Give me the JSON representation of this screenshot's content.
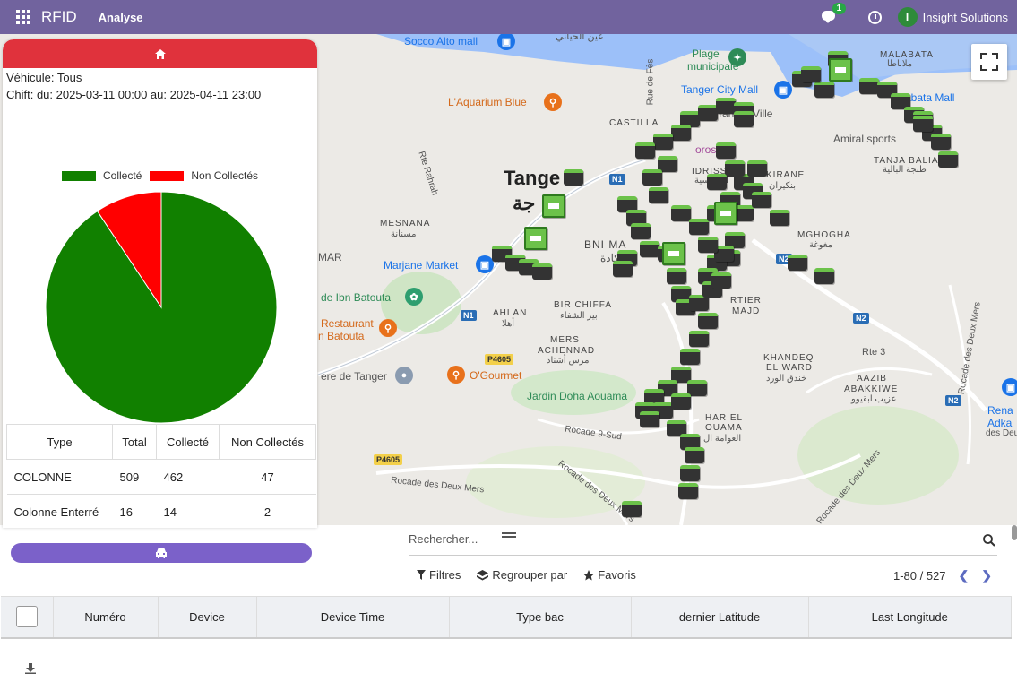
{
  "topbar": {
    "brand": "RFID",
    "menu": "Analyse",
    "chat_badge": "1",
    "user_initial": "I",
    "user_name": "Insight Solutions",
    "bg_color": "#71639e"
  },
  "map_labels": {
    "socco": "Socco Alto mall",
    "socco_ar": "عين الحياني",
    "plage": "Plage",
    "plage2": "municipale",
    "tanger_city_mall": "Tanger City Mall",
    "aquarium": "L'Aquarium Blue",
    "castilla": "CASTILLA",
    "tanger_ville": "Tanger Ville",
    "rue_fes": "Rue de Fès",
    "rte_rahrah": "Rte Rahrah",
    "tanger_big": "Tange",
    "tanger_ar": "جة",
    "mesnana": "MESNANA",
    "mesnana_ar": "مسنانة",
    "idrissia": "IDRISSIA",
    "idrissia_ar": "الإدريسية",
    "kirane": "KIRANE",
    "kirane_ar": "بنكيران",
    "mghogha": "MGHOGHA",
    "mghogha_ar": "مغوغة",
    "bni_makada": "BNI MA",
    "bni_makada_ar": "مكادة",
    "marjane": "Marjane Market",
    "ibn_batouta": "de Ibn Batouta",
    "restaurant": "Restaurant",
    "restaurant2": "n Batouta",
    "ahlan": "AHLAN",
    "ahlan_ar": "أهلا",
    "bir_chiffa": "BIR CHIFFA",
    "bir_chiffa_ar": "بير الشفاء",
    "mers": "MERS",
    "achennad": "ACHENNAD",
    "mers_ar": "مرس أشناد",
    "ogourmet": "O'Gourmet",
    "ere_tanger": "ere de Tanger",
    "jardin_doha": "Jardin Doha Aouama",
    "rocade_9": "Rocade 9-Sud",
    "rocade_deux": "Rocade des Deux Mers",
    "rocade_deux2": "Rocade des Deux Mers",
    "rocade_deux3": "Rocade des Deux Mers",
    "rocade_deux4": "Rocade des Deux Mers",
    "rocade_deux5": "des Deux Mers",
    "khandeq": "KHANDEQ",
    "el_ward": "EL WARD",
    "el_ward_ar": "خندق الورد",
    "aazib": "AAZIB",
    "abakkiwe": "ABAKKIWE",
    "aazib_ar": "عزيب ابقيوو",
    "char_el": "HAR EL",
    "ouama": "OUAMA",
    "ouama_ar": "العوامة ال",
    "artier": "RTIER",
    "majd": "MAJD",
    "malabata": "MALABATA",
    "malabata_ar": "ملاباطا",
    "abata_mall": "abata Mall",
    "amiral": "Amiral sports",
    "tanja_balia": "TANJA BALIA",
    "tanja_balia_ar": "طنجة البالية",
    "rte3": "Rte 3",
    "rena": "Rena",
    "adka": "Adka",
    "mar": "MAR",
    "toros": "oros",
    "n1a": "N1",
    "n1b": "N1",
    "n2a": "N2",
    "n2b": "N2",
    "n2c": "N2",
    "p4605a": "P4605",
    "p4605b": "P4605"
  },
  "panel": {
    "vehicle_line": "Véhicule: Tous",
    "shift_line": "Chift: du: 2025-03-11 00:00 au: 2025-04-11 23:00",
    "header_color": "#e0323c",
    "vehicle_button_color": "#7b61c9"
  },
  "chart_data": {
    "type": "pie",
    "title": "",
    "legend": [
      "Collecté",
      "Non Collectés"
    ],
    "legend_position": "top",
    "values": [
      476,
      49
    ],
    "colors": [
      "#118000",
      "#ff0000"
    ]
  },
  "summary_table": {
    "headers": [
      "Type",
      "Total",
      "Collecté",
      "Non Collectés"
    ],
    "rows": [
      [
        "COLONNE",
        "509",
        "462",
        "47"
      ],
      [
        "Colonne Enterré",
        "16",
        "14",
        "2"
      ]
    ]
  },
  "controls": {
    "search_placeholder": "Rechercher...",
    "filters": "Filtres",
    "group_by": "Regrouper par",
    "favorites": "Favoris",
    "pager": "1-80 / 527"
  },
  "list": {
    "columns": [
      "Numéro",
      "Device",
      "Device Time",
      "Type bac",
      "dernier Latitude",
      "Last Longitude"
    ]
  }
}
